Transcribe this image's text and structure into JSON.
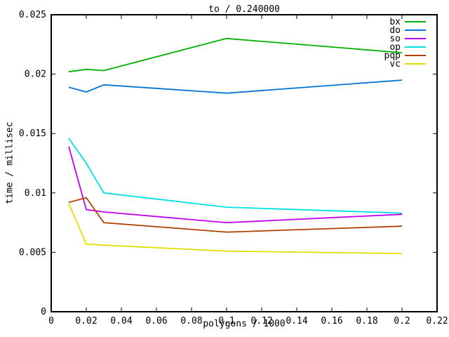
{
  "chart_data": {
    "type": "line",
    "title": "to / 0.240000",
    "xlabel": "polygons / 1000",
    "ylabel": "time / millisec",
    "xlim": [
      0,
      0.22
    ],
    "ylim": [
      0,
      0.025
    ],
    "grid": false,
    "legend_position": "top-right-inside",
    "frame_color": "#000000",
    "xticks": [
      0,
      0.02,
      0.04,
      0.06,
      0.08,
      0.1,
      0.12,
      0.14,
      0.16,
      0.18,
      0.2,
      0.22
    ],
    "xtick_labels": [
      "0",
      "0.02",
      "0.04",
      "0.06",
      "0.08",
      "0.1",
      "0.12",
      "0.14",
      "0.16",
      "0.18",
      "0.2",
      "0.22"
    ],
    "yticks": [
      0,
      0.005,
      0.01,
      0.015,
      0.02,
      0.025
    ],
    "ytick_labels": [
      "0",
      "0.005",
      "0.01",
      "0.015",
      "0.02",
      "0.025"
    ],
    "x": [
      0.01,
      0.02,
      0.03,
      0.1,
      0.2
    ],
    "series": [
      {
        "name": "bx",
        "color": "#00b000",
        "values": [
          0.0202,
          0.0204,
          0.0203,
          0.023,
          0.0218
        ]
      },
      {
        "name": "do",
        "color": "#0075d5",
        "values": [
          0.0189,
          0.0185,
          0.0191,
          0.0184,
          0.0195
        ]
      },
      {
        "name": "so",
        "color": "#c000f0",
        "values": [
          0.0139,
          0.0086,
          0.0084,
          0.0075,
          0.0082
        ]
      },
      {
        "name": "op",
        "color": "#00e0e0",
        "values": [
          0.0146,
          0.0125,
          0.01,
          0.0088,
          0.0083
        ]
      },
      {
        "name": "pqp",
        "color": "#b04000",
        "values": [
          0.0092,
          0.0096,
          0.0075,
          0.0067,
          0.0072
        ]
      },
      {
        "name": "vc",
        "color": "#e0e000",
        "values": [
          0.0091,
          0.0057,
          0.0056,
          0.0051,
          0.0049
        ]
      }
    ]
  }
}
